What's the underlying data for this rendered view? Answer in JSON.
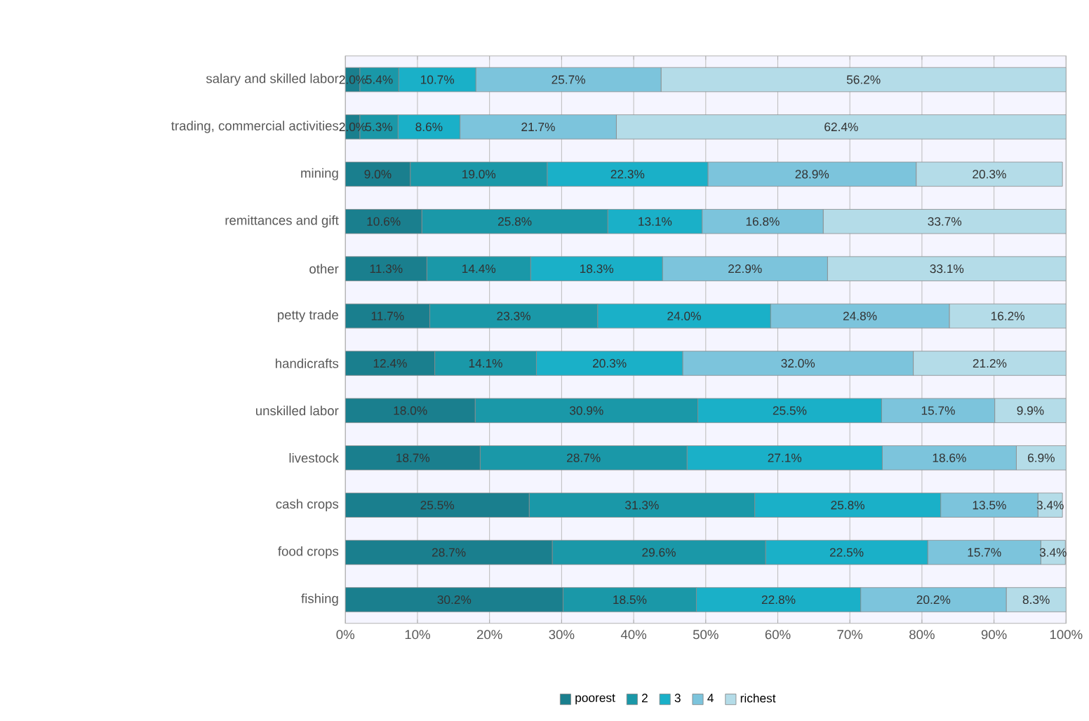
{
  "chart_data": {
    "type": "bar",
    "orientation": "horizontal",
    "stacked": true,
    "categories": [
      "salary and skilled labor",
      "trading, commercial activities",
      "mining",
      "remittances and gift",
      "other",
      "petty trade",
      "handicrafts",
      "unskilled labor",
      "livestock",
      "cash crops",
      "food crops",
      "fishing"
    ],
    "series": [
      {
        "name": "poorest",
        "color": "#1a7f8e",
        "values": [
          2.0,
          2.0,
          9.0,
          10.6,
          11.3,
          11.7,
          12.4,
          18.0,
          18.7,
          25.5,
          28.7,
          30.2
        ],
        "value_labels": [
          "2.0%",
          "2.0%",
          "9.0%",
          "10.6%",
          "11.3%",
          "11.7%",
          "12.4%",
          "18.0%",
          "18.7%",
          "25.5%",
          "28.7%",
          "30.2%"
        ]
      },
      {
        "name": "2",
        "color": "#1a98a8",
        "values": [
          5.4,
          5.3,
          19.0,
          25.8,
          14.4,
          23.3,
          14.1,
          30.9,
          28.7,
          31.3,
          29.6,
          18.5
        ],
        "value_labels": [
          "5.4%",
          "5.3%",
          "19.0%",
          "25.8%",
          "14.4%",
          "23.3%",
          "14.1%",
          "30.9%",
          "28.7%",
          "31.3%",
          "29.6%",
          "18.5%"
        ]
      },
      {
        "name": "3",
        "color": "#1ab0c8",
        "values": [
          10.7,
          8.6,
          22.3,
          13.1,
          18.3,
          24.0,
          20.3,
          25.5,
          27.1,
          25.8,
          22.5,
          22.8
        ],
        "value_labels": [
          "10.7%",
          "8.6%",
          "22.3%",
          "13.1%",
          "18.3%",
          "24.0%",
          "20.3%",
          "25.5%",
          "27.1%",
          "25.8%",
          "22.5%",
          "22.8%"
        ]
      },
      {
        "name": "4",
        "color": "#7cc4dc",
        "values": [
          25.7,
          21.7,
          28.9,
          16.8,
          22.9,
          24.8,
          32.0,
          15.7,
          18.6,
          13.5,
          15.7,
          20.2
        ],
        "value_labels": [
          "25.7%",
          "21.7%",
          "28.9%",
          "16.8%",
          "22.9%",
          "24.8%",
          "32.0%",
          "15.7%",
          "18.6%",
          "13.5%",
          "15.7%",
          "20.2%"
        ]
      },
      {
        "name": "richest",
        "color": "#b4dce8",
        "values": [
          56.2,
          62.4,
          20.3,
          33.7,
          33.1,
          16.2,
          21.2,
          9.9,
          6.9,
          3.4,
          3.4,
          8.3
        ],
        "value_labels": [
          "56.2%",
          "62.4%",
          "20.3%",
          "33.7%",
          "33.1%",
          "16.2%",
          "21.2%",
          "9.9%",
          "6.9%",
          "3.4%",
          "3.4%",
          "8.3%"
        ]
      }
    ],
    "xlim": [
      0,
      100
    ],
    "xticks": [
      {
        "value": 0,
        "label": "0%"
      },
      {
        "value": 10,
        "label": "10%"
      },
      {
        "value": 20,
        "label": "20%"
      },
      {
        "value": 30,
        "label": "30%"
      },
      {
        "value": 40,
        "label": "40%"
      },
      {
        "value": 50,
        "label": "50%"
      },
      {
        "value": 60,
        "label": "60%"
      },
      {
        "value": 70,
        "label": "70%"
      },
      {
        "value": 80,
        "label": "80%"
      },
      {
        "value": 90,
        "label": "90%"
      },
      {
        "value": 100,
        "label": "100%"
      }
    ],
    "grid": "x",
    "legend": "bottom"
  }
}
